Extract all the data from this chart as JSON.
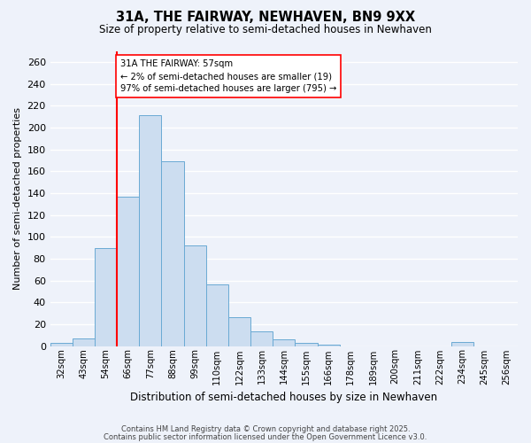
{
  "title": "31A, THE FAIRWAY, NEWHAVEN, BN9 9XX",
  "subtitle": "Size of property relative to semi-detached houses in Newhaven",
  "xlabel": "Distribution of semi-detached houses by size in Newhaven",
  "ylabel": "Number of semi-detached properties",
  "bin_labels": [
    "32sqm",
    "43sqm",
    "54sqm",
    "66sqm",
    "77sqm",
    "88sqm",
    "99sqm",
    "110sqm",
    "122sqm",
    "133sqm",
    "144sqm",
    "155sqm",
    "166sqm",
    "178sqm",
    "189sqm",
    "200sqm",
    "211sqm",
    "222sqm",
    "234sqm",
    "245sqm",
    "256sqm"
  ],
  "bar_values": [
    3,
    7,
    90,
    137,
    211,
    169,
    92,
    56,
    26,
    13,
    6,
    3,
    1,
    0,
    0,
    0,
    0,
    0,
    4,
    0,
    0
  ],
  "bar_color": "#ccddf0",
  "bar_edge_color": "#6aaad4",
  "property_line_bin_index": 2,
  "property_label": "31A THE FAIRWAY: 57sqm",
  "annotation_line1": "← 2% of semi-detached houses are smaller (19)",
  "annotation_line2": "97% of semi-detached houses are larger (795) →",
  "ylim": [
    0,
    270
  ],
  "yticks": [
    0,
    20,
    40,
    60,
    80,
    100,
    120,
    140,
    160,
    180,
    200,
    220,
    240,
    260
  ],
  "background_color": "#eef2fa",
  "grid_color": "#ffffff",
  "footer_line1": "Contains HM Land Registry data © Crown copyright and database right 2025.",
  "footer_line2": "Contains public sector information licensed under the Open Government Licence v3.0."
}
